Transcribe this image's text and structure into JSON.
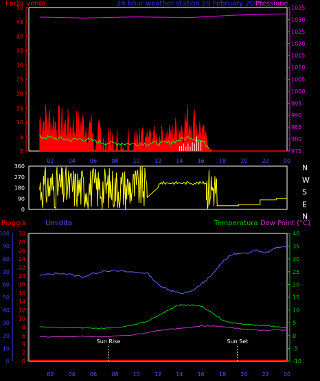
{
  "header": {
    "title": "24 hour weather station 20 February 2005",
    "left_label": "Forza vento",
    "right_label": "Pressione"
  },
  "time_axis": [
    "02",
    "04",
    "06",
    "08",
    "10",
    "12",
    "14",
    "16",
    "18",
    "20",
    "22",
    "00"
  ],
  "compass": [
    "N",
    "W",
    "S",
    "E",
    "N"
  ],
  "bottom_labels": {
    "pioggia": "Pioggia",
    "umidita": "Umidita",
    "temperatura": "Temperatura",
    "dew_point": "Dew Point (°C)",
    "sun_rise": "Sun Rise",
    "sun_set": "Sun Set"
  },
  "colors": {
    "wind": "#ff0000",
    "gust": "#00ff00",
    "gust2": "#ffffff",
    "pressure": "#ff00ff",
    "direction": "#ffff00",
    "humidity": "#6666ff",
    "temperature": "#00cc00",
    "dewpoint": "#cc33cc",
    "rain": "#ff0000",
    "axis_left": "#ff0000",
    "axis_right": "#ff00ff",
    "axis_temp": "#00cc00",
    "axis_hum": "#4444ff",
    "axis_rain": "#ff0000"
  },
  "chart_data": [
    {
      "type": "line",
      "title": "24 hour weather station 20 February 2005",
      "x": [
        1,
        5,
        10,
        15,
        19,
        23,
        24
      ],
      "y_left": {
        "label": "Forza vento",
        "range": [
          0,
          50
        ],
        "ticks": [
          "0",
          "5",
          "10",
          "15",
          "20",
          "25",
          "30",
          "35",
          "40",
          "45",
          "50"
        ]
      },
      "y_right": {
        "label": "Pressione",
        "range": [
          975,
          1035
        ],
        "ticks": [
          "975",
          "980",
          "985",
          "990",
          "995",
          "1000",
          "1005",
          "1010",
          "1015",
          "1020",
          "1025",
          "1030",
          "1035"
        ]
      },
      "series": [
        {
          "name": "Pressione",
          "x": [
            1,
            5,
            10,
            15,
            19,
            23,
            24
          ],
          "values": [
            1031,
            1030.6,
            1031.1,
            1030.8,
            1031.8,
            1032.3,
            1032.3
          ]
        },
        {
          "name": "Forza vento",
          "x": [
            1,
            4,
            5,
            7,
            10,
            13,
            15,
            16,
            17,
            24
          ],
          "values": [
            12,
            9,
            10,
            6,
            5,
            6,
            12,
            8,
            0,
            0
          ]
        }
      ]
    },
    {
      "type": "line",
      "x": [
        1,
        11,
        12,
        16.5,
        16.8,
        17.5,
        20,
        22,
        24
      ],
      "y": {
        "range": [
          0,
          360
        ],
        "ticks": [
          "0",
          "90",
          "180",
          "270",
          "360"
        ]
      },
      "series": [
        {
          "values": [
            200,
            150,
            110,
            240,
            30,
            30,
            40,
            90,
            90
          ]
        }
      ]
    },
    {
      "type": "line",
      "x": [
        1,
        3,
        5,
        7,
        9,
        11,
        12,
        13,
        14,
        15,
        16,
        17,
        18,
        19,
        20,
        21,
        22,
        23,
        24
      ],
      "y_left_rain": {
        "label": "Pioggia",
        "range": [
          0,
          30
        ],
        "ticks": [
          "0",
          "2",
          "4",
          "6",
          "8",
          "10",
          "12",
          "14",
          "16",
          "18",
          "20",
          "22",
          "24",
          "26",
          "28",
          "30"
        ]
      },
      "y_left_hum": {
        "label": "Umidita",
        "range": [
          0,
          100
        ],
        "ticks": [
          "0",
          "10",
          "20",
          "30",
          "40",
          "50",
          "60",
          "70",
          "80",
          "90",
          "100"
        ]
      },
      "y_right": {
        "label": "Temperatura / Dew Point (°C)",
        "range": [
          -10,
          40
        ],
        "ticks": [
          "-10",
          "-5",
          "0",
          "5",
          "10",
          "15",
          "20",
          "25",
          "30",
          "35",
          "40"
        ]
      },
      "series": [
        {
          "name": "Umidita",
          "values": [
            67,
            69,
            66,
            71,
            70,
            69,
            60,
            56,
            53,
            54,
            60,
            67,
            78,
            84,
            84,
            87,
            85,
            89,
            90
          ]
        },
        {
          "name": "Temperatura",
          "values": [
            3.5,
            3.2,
            3.0,
            2.8,
            3.5,
            5.5,
            7.8,
            10,
            12,
            12,
            11.5,
            9,
            6,
            5,
            4.5,
            4,
            4,
            3.5,
            3
          ]
        },
        {
          "name": "Dew Point (°C)",
          "values": [
            -0.5,
            -0.5,
            -0.3,
            -0.5,
            0,
            1,
            2,
            2.5,
            2.8,
            3.2,
            3.8,
            3.8,
            3.5,
            3,
            2.5,
            2.2,
            2.0,
            2.2,
            2.0
          ]
        },
        {
          "name": "Pioggia",
          "values": [
            0,
            0,
            0,
            0,
            0,
            0,
            0,
            0,
            0,
            0,
            0,
            0,
            0,
            0,
            0,
            0,
            0,
            0,
            0
          ]
        }
      ],
      "annotations": [
        {
          "text": "Sun Rise",
          "x": 7.4
        },
        {
          "text": "Sun Set",
          "x": 19.4
        }
      ]
    }
  ]
}
